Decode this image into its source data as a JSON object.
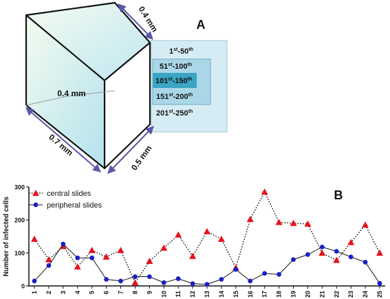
{
  "panel_a": {
    "letter": "A",
    "dimensions": {
      "top": "0.4 mm",
      "inner": "0.4 mm",
      "left": "0.7 mm",
      "right": "0.5 mm"
    },
    "slice_ranges": [
      {
        "start": "1",
        "sup_start": "st",
        "end": "50",
        "sup_end": "th"
      },
      {
        "start": "51",
        "sup_start": "st",
        "end": "100",
        "sup_end": "th"
      },
      {
        "start": "101",
        "sup_start": "st",
        "end": "150",
        "sup_end": "th"
      },
      {
        "start": "151",
        "sup_start": "st",
        "end": "200",
        "sup_end": "th"
      },
      {
        "start": "201",
        "sup_start": "st",
        "end": "250",
        "sup_end": "th"
      }
    ],
    "colors": {
      "outer_box": "#d6ecf4",
      "middle_box": "#a9d6e6",
      "inner_box": "#3aa4c3",
      "cube_face_top": "#bfe6ef",
      "cube_face_bottom": "#f2fbf0"
    }
  },
  "panel_b": {
    "letter": "B"
  },
  "chart_data": {
    "type": "line",
    "ylabel": "Number of infected cells",
    "xlabel": "",
    "categories": [
      "1",
      "2",
      "3",
      "4",
      "5",
      "6",
      "7",
      "8",
      "9",
      "10",
      "11",
      "12",
      "13",
      "14",
      "15",
      "16",
      "17",
      "18",
      "19",
      "20",
      "21",
      "22",
      "23",
      "24",
      "25"
    ],
    "ylim": [
      0,
      300
    ],
    "yticks": [
      0,
      100,
      200,
      300
    ],
    "legend_position": "top-left",
    "series": [
      {
        "name": "central slides",
        "marker": "triangle",
        "line": "dotted",
        "color": "#e8111c",
        "values": [
          142,
          80,
          120,
          58,
          108,
          88,
          108,
          10,
          75,
          115,
          155,
          90,
          165,
          142,
          55,
          202,
          285,
          193,
          190,
          188,
          100,
          78,
          132,
          185,
          100
        ]
      },
      {
        "name": "peripheral slides",
        "marker": "circle",
        "line": "solid",
        "color": "#1c1fc8",
        "values": [
          15,
          62,
          127,
          85,
          85,
          20,
          15,
          28,
          28,
          10,
          22,
          7,
          5,
          20,
          50,
          15,
          38,
          35,
          80,
          95,
          118,
          105,
          88,
          72,
          8
        ]
      }
    ]
  }
}
